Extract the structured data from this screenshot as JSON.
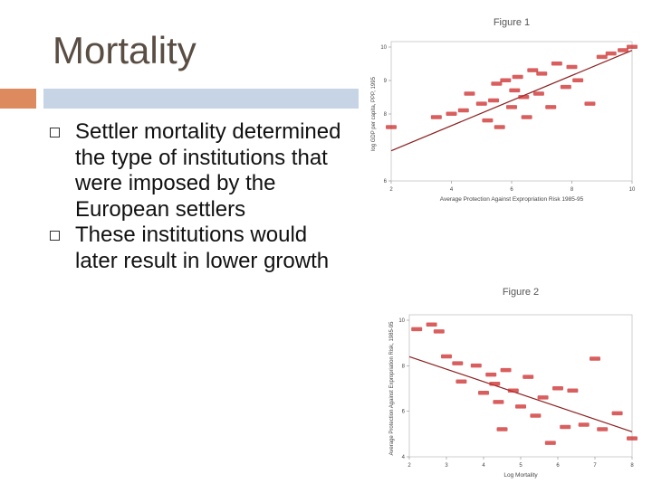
{
  "slide": {
    "title": "Mortality",
    "bullets": [
      "Settler mortality determined the type of institutions that were imposed by the European settlers",
      "These institutions would later result in lower growth"
    ]
  },
  "colors": {
    "accent_orange": "#dd8a5e",
    "accent_blue": "#c7d4e6",
    "marker_red": "#cc2a2a",
    "line_dark_red": "#8b1e1e"
  },
  "chart_data": [
    {
      "type": "scatter",
      "title": "Figure 1",
      "xlabel": "Average Protection Against Expropriation Risk 1985-95",
      "ylabel": "log GDP per capita, PPP, 1995",
      "xlim": [
        2,
        10
      ],
      "ylim": [
        6,
        10
      ],
      "xticks": [
        "2",
        "4",
        "6",
        "8",
        "10"
      ],
      "yticks": [
        "10",
        "9",
        "8",
        "6"
      ],
      "points": [
        {
          "x": 2.0,
          "y": 7.6
        },
        {
          "x": 3.5,
          "y": 7.9
        },
        {
          "x": 4.0,
          "y": 8.0
        },
        {
          "x": 4.4,
          "y": 8.1
        },
        {
          "x": 4.6,
          "y": 8.6
        },
        {
          "x": 5.0,
          "y": 8.3
        },
        {
          "x": 5.2,
          "y": 7.8
        },
        {
          "x": 5.4,
          "y": 8.4
        },
        {
          "x": 5.5,
          "y": 8.9
        },
        {
          "x": 5.6,
          "y": 7.6
        },
        {
          "x": 5.8,
          "y": 9.0
        },
        {
          "x": 6.0,
          "y": 8.2
        },
        {
          "x": 6.1,
          "y": 8.7
        },
        {
          "x": 6.2,
          "y": 9.1
        },
        {
          "x": 6.4,
          "y": 8.5
        },
        {
          "x": 6.5,
          "y": 7.9
        },
        {
          "x": 6.7,
          "y": 9.3
        },
        {
          "x": 6.9,
          "y": 8.6
        },
        {
          "x": 7.0,
          "y": 9.2
        },
        {
          "x": 7.3,
          "y": 8.2
        },
        {
          "x": 7.5,
          "y": 9.5
        },
        {
          "x": 7.8,
          "y": 8.8
        },
        {
          "x": 8.0,
          "y": 9.4
        },
        {
          "x": 8.2,
          "y": 9.0
        },
        {
          "x": 8.6,
          "y": 8.3
        },
        {
          "x": 9.0,
          "y": 9.7
        },
        {
          "x": 9.3,
          "y": 9.8
        },
        {
          "x": 9.7,
          "y": 9.9
        },
        {
          "x": 10.0,
          "y": 10.0
        }
      ],
      "fit": {
        "x": [
          2,
          10
        ],
        "y": [
          6.9,
          9.9
        ]
      }
    },
    {
      "type": "scatter",
      "title": "Figure 2",
      "xlabel": "Log Mortality",
      "ylabel": "Average Protection Against Expropriation Risk, 1985-95",
      "xlim": [
        2,
        8
      ],
      "ylim": [
        4,
        10
      ],
      "xticks": [
        "2",
        "3",
        "4",
        "5",
        "6",
        "7",
        "8"
      ],
      "yticks": [
        "10",
        "8",
        "6",
        "4"
      ],
      "points": [
        {
          "x": 2.2,
          "y": 9.6
        },
        {
          "x": 2.6,
          "y": 9.8
        },
        {
          "x": 2.8,
          "y": 9.5
        },
        {
          "x": 3.0,
          "y": 8.4
        },
        {
          "x": 3.3,
          "y": 8.1
        },
        {
          "x": 3.4,
          "y": 7.3
        },
        {
          "x": 3.8,
          "y": 8.0
        },
        {
          "x": 4.0,
          "y": 6.8
        },
        {
          "x": 4.2,
          "y": 7.6
        },
        {
          "x": 4.3,
          "y": 7.2
        },
        {
          "x": 4.4,
          "y": 6.4
        },
        {
          "x": 4.5,
          "y": 5.2
        },
        {
          "x": 4.6,
          "y": 7.8
        },
        {
          "x": 4.8,
          "y": 6.9
        },
        {
          "x": 5.0,
          "y": 6.2
        },
        {
          "x": 5.2,
          "y": 7.5
        },
        {
          "x": 5.4,
          "y": 5.8
        },
        {
          "x": 5.6,
          "y": 6.6
        },
        {
          "x": 5.8,
          "y": 4.6
        },
        {
          "x": 6.0,
          "y": 7.0
        },
        {
          "x": 6.2,
          "y": 5.3
        },
        {
          "x": 6.4,
          "y": 6.9
        },
        {
          "x": 6.7,
          "y": 5.4
        },
        {
          "x": 7.0,
          "y": 8.3
        },
        {
          "x": 7.2,
          "y": 5.2
        },
        {
          "x": 7.6,
          "y": 5.9
        },
        {
          "x": 8.0,
          "y": 4.8
        }
      ],
      "fit": {
        "x": [
          2,
          8
        ],
        "y": [
          8.4,
          5.1
        ]
      }
    }
  ]
}
